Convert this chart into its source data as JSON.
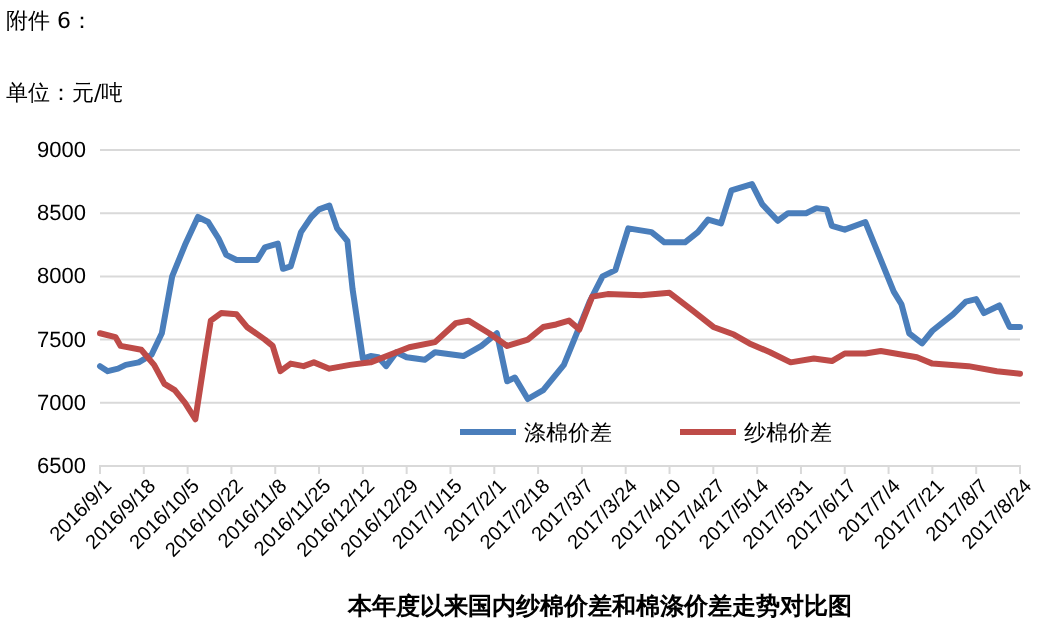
{
  "chart_data": {
    "type": "line",
    "title": "本年度以来国内纱棉价差和棉涤价差走势对比图",
    "annotations": [
      "附件 6：",
      "单位：元/吨"
    ],
    "series": [
      {
        "name": "涤棉价差",
        "color": "#4a7ebb",
        "x": [
          "2016-09-01",
          "2016-09-04",
          "2016-09-08",
          "2016-09-11",
          "2016-09-16",
          "2016-09-21",
          "2016-09-25",
          "2016-09-29",
          "2016-10-04",
          "2016-10-09",
          "2016-10-13",
          "2016-10-17",
          "2016-10-20",
          "2016-10-24",
          "2016-11-01",
          "2016-11-04",
          "2016-11-09",
          "2016-11-11",
          "2016-11-14",
          "2016-11-18",
          "2016-11-22",
          "2016-11-25",
          "2016-11-29",
          "2016-12-02",
          "2016-12-06",
          "2016-12-08",
          "2016-12-12",
          "2016-12-15",
          "2016-12-18",
          "2016-12-21",
          "2016-12-25",
          "2016-12-29",
          "2017-01-05",
          "2017-01-09",
          "2017-01-20",
          "2017-01-27",
          "2017-02-02",
          "2017-02-06",
          "2017-02-09",
          "2017-02-14",
          "2017-02-20",
          "2017-02-28",
          "2017-03-05",
          "2017-03-10",
          "2017-03-15",
          "2017-03-20",
          "2017-03-25",
          "2017-04-03",
          "2017-04-08",
          "2017-04-16",
          "2017-04-21",
          "2017-04-25",
          "2017-04-30",
          "2017-05-04",
          "2017-05-12",
          "2017-05-16",
          "2017-05-22",
          "2017-05-26",
          "2017-06-02",
          "2017-06-06",
          "2017-06-10",
          "2017-06-12",
          "2017-06-17",
          "2017-06-25",
          "2017-06-29",
          "2017-07-06",
          "2017-07-09",
          "2017-07-12",
          "2017-07-17",
          "2017-07-21",
          "2017-07-29",
          "2017-08-03",
          "2017-08-07",
          "2017-08-10",
          "2017-08-16",
          "2017-08-20",
          "2017-08-24"
        ],
        "values": [
          7290,
          7250,
          7270,
          7300,
          7320,
          7380,
          7550,
          8000,
          8250,
          8470,
          8430,
          8300,
          8170,
          8130,
          8130,
          8230,
          8260,
          8060,
          8080,
          8350,
          8470,
          8530,
          8560,
          8380,
          8280,
          7900,
          7350,
          7370,
          7360,
          7290,
          7400,
          7360,
          7340,
          7400,
          7370,
          7450,
          7550,
          7170,
          7200,
          7030,
          7100,
          7300,
          7550,
          7800,
          8000,
          8050,
          8380,
          8350,
          8270,
          8270,
          8350,
          8450,
          8420,
          8680,
          8730,
          8570,
          8440,
          8500,
          8500,
          8540,
          8530,
          8400,
          8370,
          8430,
          8230,
          7880,
          7780,
          7550,
          7470,
          7570,
          7700,
          7800,
          7820,
          7710,
          7770,
          7600,
          7600
        ]
      },
      {
        "name": "纱棉价差",
        "color": "#be4b48",
        "x": [
          "2016-09-01",
          "2016-09-07",
          "2016-09-09",
          "2016-09-17",
          "2016-09-22",
          "2016-09-26",
          "2016-09-30",
          "2016-10-04",
          "2016-10-08",
          "2016-10-12",
          "2016-10-14",
          "2016-10-18",
          "2016-10-24",
          "2016-10-28",
          "2016-11-04",
          "2016-11-07",
          "2016-11-10",
          "2016-11-14",
          "2016-11-19",
          "2016-11-23",
          "2016-11-29",
          "2016-12-07",
          "2016-12-15",
          "2016-12-25",
          "2016-12-30",
          "2017-01-09",
          "2017-01-17",
          "2017-01-22",
          "2017-01-30",
          "2017-02-06",
          "2017-02-14",
          "2017-02-20",
          "2017-02-25",
          "2017-03-02",
          "2017-03-06",
          "2017-03-11",
          "2017-03-17",
          "2017-03-30",
          "2017-04-10",
          "2017-04-19",
          "2017-04-27",
          "2017-05-05",
          "2017-05-11",
          "2017-05-19",
          "2017-05-27",
          "2017-06-05",
          "2017-06-12",
          "2017-06-17",
          "2017-06-25",
          "2017-07-01",
          "2017-07-15",
          "2017-07-21",
          "2017-08-04",
          "2017-08-15",
          "2017-08-24"
        ],
        "values": [
          7550,
          7520,
          7450,
          7420,
          7300,
          7150,
          7100,
          7000,
          6870,
          7400,
          7650,
          7710,
          7700,
          7600,
          7500,
          7450,
          7250,
          7310,
          7290,
          7320,
          7270,
          7300,
          7320,
          7400,
          7440,
          7480,
          7630,
          7650,
          7550,
          7450,
          7500,
          7600,
          7620,
          7650,
          7580,
          7840,
          7860,
          7850,
          7870,
          7730,
          7600,
          7540,
          7470,
          7400,
          7320,
          7350,
          7330,
          7390,
          7390,
          7410,
          7360,
          7310,
          7290,
          7250,
          7230
        ]
      }
    ],
    "xlim": [
      "2016-09-01",
      "2017-08-24"
    ],
    "xticks": [
      {
        "value": "2016-09-01",
        "label": "2016/9/1"
      },
      {
        "value": "2016-09-18",
        "label": "2016/9/18"
      },
      {
        "value": "2016-10-05",
        "label": "2016/10/5"
      },
      {
        "value": "2016-10-22",
        "label": "2016/10/22"
      },
      {
        "value": "2016-11-08",
        "label": "2016/11/8"
      },
      {
        "value": "2016-11-25",
        "label": "2016/11/25"
      },
      {
        "value": "2016-12-12",
        "label": "2016/12/12"
      },
      {
        "value": "2016-12-29",
        "label": "2016/12/29"
      },
      {
        "value": "2017-01-15",
        "label": "2017/1/15"
      },
      {
        "value": "2017-02-01",
        "label": "2017/2/1"
      },
      {
        "value": "2017-02-18",
        "label": "2017/2/18"
      },
      {
        "value": "2017-03-07",
        "label": "2017/3/7"
      },
      {
        "value": "2017-03-24",
        "label": "2017/3/24"
      },
      {
        "value": "2017-04-10",
        "label": "2017/4/10"
      },
      {
        "value": "2017-04-27",
        "label": "2017/4/27"
      },
      {
        "value": "2017-05-14",
        "label": "2017/5/14"
      },
      {
        "value": "2017-05-31",
        "label": "2017/5/31"
      },
      {
        "value": "2017-06-17",
        "label": "2017/6/17"
      },
      {
        "value": "2017-07-04",
        "label": "2017/7/4"
      },
      {
        "value": "2017-07-21",
        "label": "2017/7/21"
      },
      {
        "value": "2017-08-07",
        "label": "2017/8/7"
      },
      {
        "value": "2017-08-24",
        "label": "2017/8/24"
      }
    ],
    "ylim": [
      6500,
      9000
    ],
    "yticks": [
      6500,
      7000,
      7500,
      8000,
      8500,
      9000
    ],
    "grid": "y",
    "legend": "bottom",
    "marker": "none",
    "line_style": "solid"
  }
}
